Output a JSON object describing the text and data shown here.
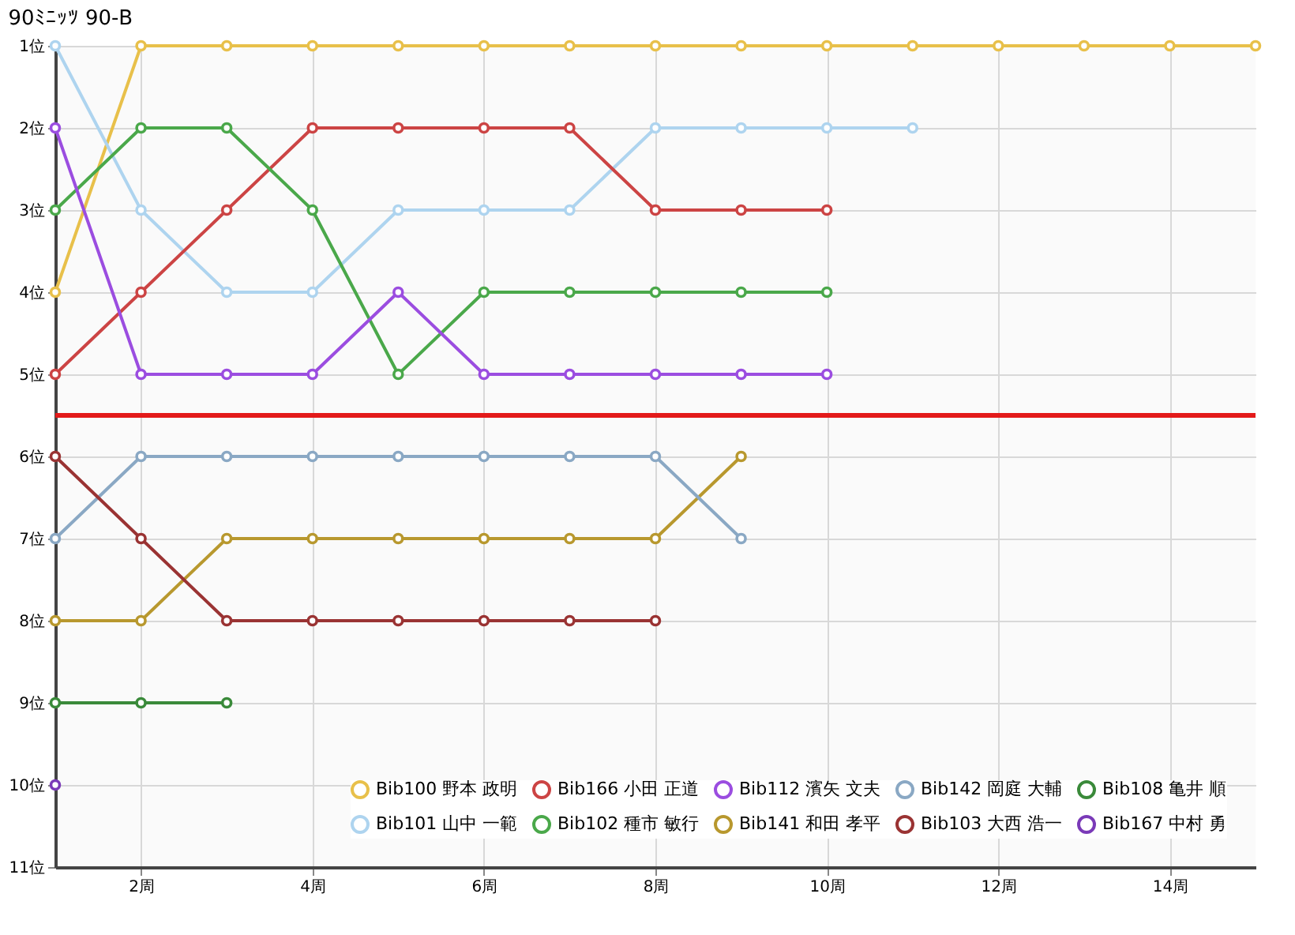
{
  "chart_data": {
    "type": "line",
    "title": "90ﾐﾆｯﾂ 90-B",
    "x": [
      1,
      2,
      3,
      4,
      5,
      6,
      7,
      8,
      9,
      10,
      11,
      12,
      13,
      14,
      15
    ],
    "xlim": [
      1,
      15
    ],
    "xticks": [
      {
        "value": 2,
        "label": "2周"
      },
      {
        "value": 4,
        "label": "4周"
      },
      {
        "value": 6,
        "label": "6周"
      },
      {
        "value": 8,
        "label": "8周"
      },
      {
        "value": 10,
        "label": "10周"
      },
      {
        "value": 12,
        "label": "12周"
      },
      {
        "value": 14,
        "label": "14周"
      }
    ],
    "ylim": [
      11,
      1
    ],
    "yticks": [
      {
        "value": 1,
        "label": "1位"
      },
      {
        "value": 2,
        "label": "2位"
      },
      {
        "value": 3,
        "label": "3位"
      },
      {
        "value": 4,
        "label": "4位"
      },
      {
        "value": 5,
        "label": "5位"
      },
      {
        "value": 6,
        "label": "6位"
      },
      {
        "value": 7,
        "label": "7位"
      },
      {
        "value": 8,
        "label": "8位"
      },
      {
        "value": 9,
        "label": "9位"
      },
      {
        "value": 10,
        "label": "10位"
      },
      {
        "value": 11,
        "label": "11位"
      }
    ],
    "grid": true,
    "legend": "bottom right",
    "marker": "circle",
    "line_style": "solid",
    "ref_lines": [
      {
        "axis": "y",
        "value": 5.5,
        "color": "#e31a1a"
      }
    ],
    "series": [
      {
        "name": "Bib100 野本 政明",
        "color": "#e8c04a",
        "values": [
          4,
          1,
          1,
          1,
          1,
          1,
          1,
          1,
          1,
          1,
          1,
          1,
          1,
          1,
          1
        ]
      },
      {
        "name": "Bib101 山中 一範",
        "color": "#aed4ef",
        "values": [
          1,
          3,
          4,
          4,
          3,
          3,
          3,
          2,
          2,
          2,
          2,
          null,
          null,
          null,
          null
        ]
      },
      {
        "name": "Bib166 小田 正道",
        "color": "#cc4444",
        "values": [
          5,
          4,
          3,
          2,
          2,
          2,
          2,
          3,
          3,
          3,
          null,
          null,
          null,
          null,
          null
        ]
      },
      {
        "name": "Bib102 種市 敏行",
        "color": "#4aa84a",
        "values": [
          3,
          2,
          2,
          3,
          5,
          4,
          4,
          4,
          4,
          4,
          null,
          null,
          null,
          null,
          null
        ]
      },
      {
        "name": "Bib112 濱矢 文夫",
        "color": "#9b4de0",
        "values": [
          2,
          5,
          5,
          5,
          4,
          5,
          5,
          5,
          5,
          5,
          null,
          null,
          null,
          null,
          null
        ]
      },
      {
        "name": "Bib141 和田 孝平",
        "color": "#b8982e",
        "values": [
          8,
          8,
          7,
          7,
          7,
          7,
          7,
          7,
          6,
          null,
          null,
          null,
          null,
          null,
          null
        ]
      },
      {
        "name": "Bib142 岡庭 大輔",
        "color": "#8aa8c4",
        "values": [
          7,
          6,
          6,
          6,
          6,
          6,
          6,
          6,
          7,
          null,
          null,
          null,
          null,
          null,
          null
        ]
      },
      {
        "name": "Bib103 大西 浩一",
        "color": "#9a3333",
        "values": [
          6,
          7,
          8,
          8,
          8,
          8,
          8,
          8,
          null,
          null,
          null,
          null,
          null,
          null,
          null
        ]
      },
      {
        "name": "Bib108 亀井 順",
        "color": "#3a8a3a",
        "values": [
          9,
          9,
          9,
          null,
          null,
          null,
          null,
          null,
          null,
          null,
          null,
          null,
          null,
          null,
          null
        ]
      },
      {
        "name": "Bib167 中村 勇",
        "color": "#7a3ab8",
        "values": [
          10,
          null,
          null,
          null,
          null,
          null,
          null,
          null,
          null,
          null,
          null,
          null,
          null,
          null,
          null
        ]
      }
    ]
  }
}
